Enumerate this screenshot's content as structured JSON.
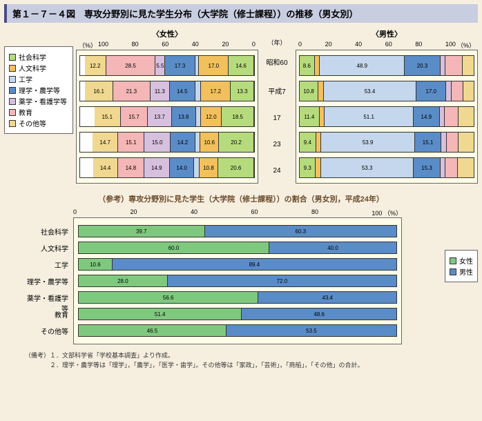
{
  "title": "第１－７－４図　専攻分野別に見た学生分布（大学院（修士課程））の推移（男女別）",
  "legend": [
    {
      "label": "社会科学",
      "color": "#b6db7c"
    },
    {
      "label": "人文科学",
      "color": "#f2c05c"
    },
    {
      "label": "工学",
      "color": "#c4d7ec"
    },
    {
      "label": "理学・農学等",
      "color": "#5a8cc8"
    },
    {
      "label": "薬学・看護学等",
      "color": "#d6c0de"
    },
    {
      "label": "教育",
      "color": "#f4b6b6"
    },
    {
      "label": "その他等",
      "color": "#f0d890"
    }
  ],
  "top": {
    "female_title": "〈女性〉",
    "male_title": "〈男性〉",
    "unit_left": "（%）",
    "unit_right": "（%）",
    "year_unit": "（年）",
    "female_ticks": [
      "100",
      "80",
      "60",
      "40",
      "20",
      "0"
    ],
    "male_ticks": [
      "0",
      "20",
      "40",
      "60",
      "80",
      "100"
    ],
    "years": [
      "昭和60",
      "平成7",
      "17",
      "23",
      "24"
    ],
    "female_rows": [
      [
        {
          "v": 14.6,
          "c": "#b6db7c"
        },
        {
          "v": 17.0,
          "c": "#f2c05c"
        },
        {
          "v": 2.2,
          "c": "#c4d7ec",
          "hide": true
        },
        {
          "v": 17.3,
          "c": "#5a8cc8"
        },
        {
          "v": 5.5,
          "c": "#d6c0de"
        },
        {
          "v": 28.5,
          "c": "#f4b6b6"
        },
        {
          "v": 12.2,
          "c": "#f0d890"
        },
        {
          "v": 2.7,
          "c": "#ffffff",
          "hide": true
        }
      ],
      [
        {
          "v": 13.3,
          "c": "#b6db7c"
        },
        {
          "v": 17.2,
          "c": "#f2c05c"
        },
        {
          "v": 3.4,
          "c": "#c4d7ec",
          "hide": true
        },
        {
          "v": 14.5,
          "c": "#5a8cc8"
        },
        {
          "v": 11.3,
          "c": "#d6c0de"
        },
        {
          "v": 21.3,
          "c": "#f4b6b6"
        },
        {
          "v": 16.1,
          "c": "#f0d890"
        },
        {
          "v": 2.9,
          "c": "#ffffff",
          "hide": true
        }
      ],
      [
        {
          "v": 18.5,
          "c": "#b6db7c"
        },
        {
          "v": 12.0,
          "c": "#f2c05c"
        },
        {
          "v": 3.0,
          "c": "#c4d7ec",
          "hide": true
        },
        {
          "v": 13.8,
          "c": "#5a8cc8"
        },
        {
          "v": 13.7,
          "c": "#d6c0de"
        },
        {
          "v": 15.7,
          "c": "#f4b6b6"
        },
        {
          "v": 15.1,
          "c": "#f0d890"
        },
        {
          "v": 8.2,
          "c": "#ffffff",
          "hide": true
        }
      ],
      [
        {
          "v": 20.2,
          "c": "#b6db7c"
        },
        {
          "v": 10.6,
          "c": "#f2c05c"
        },
        {
          "v": 3.0,
          "c": "#c4d7ec",
          "hide": true
        },
        {
          "v": 14.2,
          "c": "#5a8cc8"
        },
        {
          "v": 15.0,
          "c": "#d6c0de"
        },
        {
          "v": 15.1,
          "c": "#f4b6b6"
        },
        {
          "v": 14.7,
          "c": "#f0d890"
        },
        {
          "v": 7.2,
          "c": "#ffffff",
          "hide": true
        }
      ],
      [
        {
          "v": 20.6,
          "c": "#b6db7c"
        },
        {
          "v": 10.8,
          "c": "#f2c05c"
        },
        {
          "v": 3.0,
          "c": "#c4d7ec",
          "hide": true
        },
        {
          "v": 14.0,
          "c": "#5a8cc8"
        },
        {
          "v": 14.9,
          "c": "#d6c0de"
        },
        {
          "v": 14.8,
          "c": "#f4b6b6"
        },
        {
          "v": 14.4,
          "c": "#f0d890"
        },
        {
          "v": 7.5,
          "c": "#ffffff",
          "hide": true
        }
      ]
    ],
    "male_rows": [
      [
        {
          "v": 8.6,
          "c": "#b6db7c"
        },
        {
          "v": 3.0,
          "c": "#f2c05c",
          "hide": true
        },
        {
          "v": 48.9,
          "c": "#c4d7ec"
        },
        {
          "v": 20.3,
          "c": "#5a8cc8"
        },
        {
          "v": 3.0,
          "c": "#d6c0de",
          "hide": true
        },
        {
          "v": 10.0,
          "c": "#f4b6b6",
          "hide": true
        },
        {
          "v": 6.2,
          "c": "#f0d890",
          "hide": true
        }
      ],
      [
        {
          "v": 10.8,
          "c": "#b6db7c"
        },
        {
          "v": 3.0,
          "c": "#f2c05c",
          "hide": true
        },
        {
          "v": 53.4,
          "c": "#c4d7ec"
        },
        {
          "v": 17.0,
          "c": "#5a8cc8"
        },
        {
          "v": 3.0,
          "c": "#d6c0de",
          "hide": true
        },
        {
          "v": 7.0,
          "c": "#f4b6b6",
          "hide": true
        },
        {
          "v": 5.8,
          "c": "#f0d890",
          "hide": true
        }
      ],
      [
        {
          "v": 11.4,
          "c": "#b6db7c"
        },
        {
          "v": 3.0,
          "c": "#f2c05c",
          "hide": true
        },
        {
          "v": 51.1,
          "c": "#c4d7ec"
        },
        {
          "v": 14.9,
          "c": "#5a8cc8"
        },
        {
          "v": 3.0,
          "c": "#d6c0de",
          "hide": true
        },
        {
          "v": 8.0,
          "c": "#f4b6b6",
          "hide": true
        },
        {
          "v": 8.6,
          "c": "#f0d890",
          "hide": true
        }
      ],
      [
        {
          "v": 9.4,
          "c": "#b6db7c"
        },
        {
          "v": 3.0,
          "c": "#f2c05c",
          "hide": true
        },
        {
          "v": 53.9,
          "c": "#c4d7ec"
        },
        {
          "v": 15.1,
          "c": "#5a8cc8"
        },
        {
          "v": 3.0,
          "c": "#d6c0de",
          "hide": true
        },
        {
          "v": 7.0,
          "c": "#f4b6b6",
          "hide": true
        },
        {
          "v": 8.6,
          "c": "#f0d890",
          "hide": true
        }
      ],
      [
        {
          "v": 9.3,
          "c": "#b6db7c"
        },
        {
          "v": 3.0,
          "c": "#f2c05c",
          "hide": true
        },
        {
          "v": 53.3,
          "c": "#c4d7ec"
        },
        {
          "v": 15.3,
          "c": "#5a8cc8"
        },
        {
          "v": 3.0,
          "c": "#d6c0de",
          "hide": true
        },
        {
          "v": 7.0,
          "c": "#f4b6b6",
          "hide": true
        },
        {
          "v": 9.1,
          "c": "#f0d890",
          "hide": true
        }
      ]
    ]
  },
  "mid_title": "（参考）専攻分野別に見た学生（大学院（修士課程））の割合（男女別，平成24年）",
  "bottom": {
    "ticks": [
      "0",
      "20",
      "40",
      "60",
      "80",
      "100 （%）"
    ],
    "legend": [
      {
        "label": "女性",
        "color": "#7fc97f"
      },
      {
        "label": "男性",
        "color": "#5a8cc8"
      }
    ],
    "categories": [
      "社会科学",
      "人文科学",
      "工学",
      "理学・農学等",
      "薬学・看護学等",
      "教育",
      "その他等"
    ],
    "rows": [
      {
        "f": 39.7,
        "m": 60.3
      },
      {
        "f": 60.0,
        "m": 40.0
      },
      {
        "f": 10.6,
        "m": 89.4
      },
      {
        "f": 28.0,
        "m": 72.0
      },
      {
        "f": 56.6,
        "m": 43.4
      },
      {
        "f": 51.4,
        "m": 48.6
      },
      {
        "f": 46.5,
        "m": 53.5
      }
    ],
    "female_color": "#7fc97f",
    "male_color": "#5a8cc8"
  },
  "footnotes": [
    "（備考）１．文部科学省「学校基本調査」より作成。",
    "　　　　２．理学・農学等は「理学」，「農学」，「医学・歯学」。その他等は「家政」，「芸術」，「商船」，「その他」の合計。"
  ]
}
